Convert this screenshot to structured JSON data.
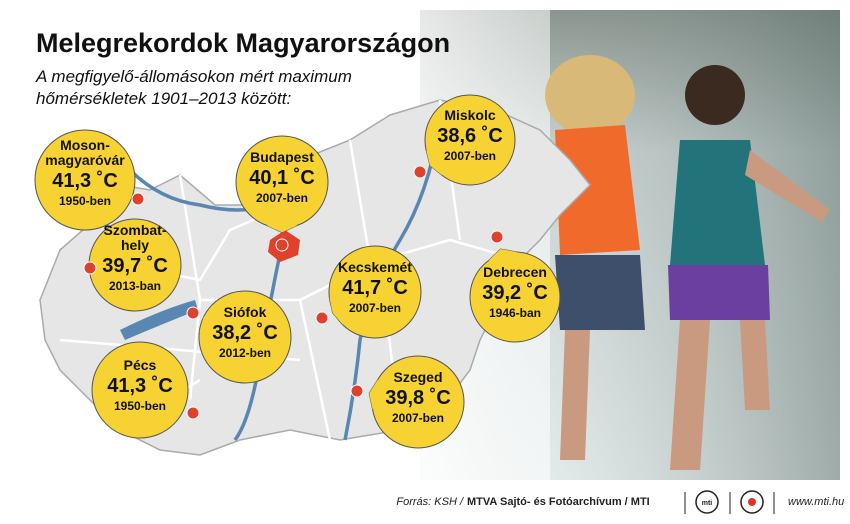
{
  "header": {
    "title": "Melegrekordok Magyarországon",
    "subtitle": [
      "A megfigyelő-állomásokon mért maximum",
      "hőmérsékletek 1901–2013 között:"
    ]
  },
  "cities": [
    {
      "name": [
        "Moson-",
        "magyaróvár"
      ],
      "temp": "41,3 ˚C",
      "year": "1950-ben"
    },
    {
      "name": [
        "Szombat-",
        "hely"
      ],
      "temp": "39,7 ˚C",
      "year": "2013-ban"
    },
    {
      "name": [
        "Budapest"
      ],
      "temp": "40,1 ˚C",
      "year": "2007-ben"
    },
    {
      "name": [
        "Miskolc"
      ],
      "temp": "38,6 ˚C",
      "year": "2007-ben"
    },
    {
      "name": [
        "Kecskemét"
      ],
      "temp": "41,7 ˚C",
      "year": "2007-ben"
    },
    {
      "name": [
        "Debrecen"
      ],
      "temp": "39,2 ˚C",
      "year": "1946-ban"
    },
    {
      "name": [
        "Siófok"
      ],
      "temp": "38,2 ˚C",
      "year": "2012-ben"
    },
    {
      "name": [
        "Pécs"
      ],
      "temp": "41,3 ˚C",
      "year": "1950-ben"
    },
    {
      "name": [
        "Szeged"
      ],
      "temp": "39,8 ˚C",
      "year": "2007-ben"
    }
  ],
  "footer": {
    "source": "Forrás: KSH /",
    "agency": "MTVA Sajtó- és Fotóarchívum / MTI",
    "logo": "mti",
    "url": "www.mti.hu"
  }
}
